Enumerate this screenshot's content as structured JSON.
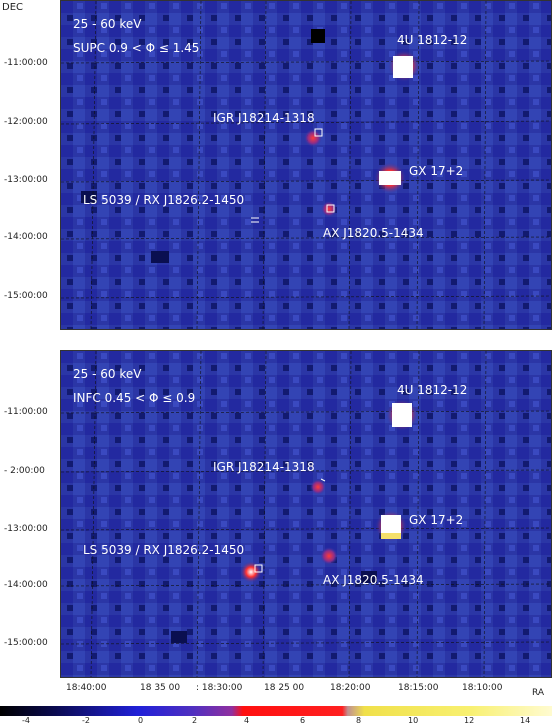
{
  "axes": {
    "dec_label": "DEC",
    "ra_label": "RA",
    "top_dec_ticks": [
      "-11:00:00",
      "-12:00:00",
      "-13:00:00",
      "-14:00:00",
      "-15:00:00"
    ],
    "bottom_dec_ticks": [
      "-11:00:00",
      "- 2:00:00",
      "-13:00:00",
      "-14:00:00",
      "-15:00:00"
    ],
    "ra_ticks": [
      "18:40:00",
      "18 35 00",
      ": 18:30:00",
      "18 25 00",
      "18:20:00",
      "18:15:00",
      "18:10:00"
    ]
  },
  "top_panel": {
    "energy": "25 - 60 keV",
    "phase": "SUPC   0.9 < Φ ≤ 1.45",
    "sources": [
      "4U 1812-12",
      "IGR J18214-1318",
      "GX 17+2",
      "LS 5039 / RX J1826.2-1450",
      "AX J1820.5-1434"
    ]
  },
  "bottom_panel": {
    "energy": "25 - 60 keV",
    "phase": "INFC   0.45 < Φ ≤ 0.9",
    "sources": [
      "4U 1812-12",
      "IGR J18214-1318",
      "GX 17+2",
      "LS 5039 / RX J1826.2-1450",
      "AX J1820.5-1434"
    ]
  },
  "colorbar": {
    "labels": [
      "-4",
      "-2",
      "0",
      "2",
      "4",
      "6",
      "8",
      "10",
      "12",
      "14"
    ]
  }
}
